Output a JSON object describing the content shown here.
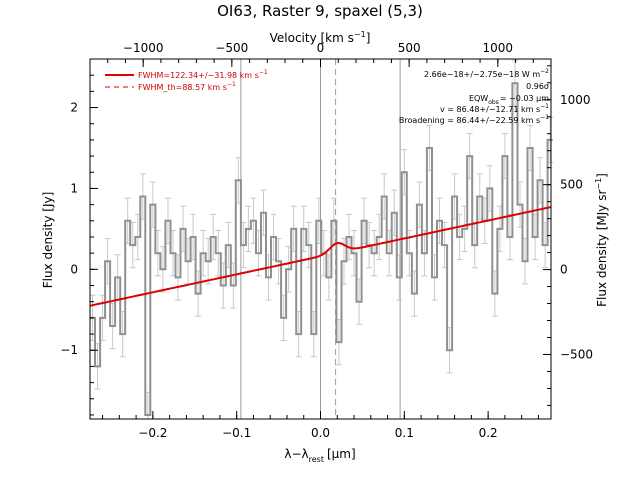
{
  "chart_data": {
    "type": "line",
    "title": "OI63, Raster 9, spaxel (5,3)",
    "xlabel_main": "λ−λ",
    "xlabel_sub": "rest",
    "xlabel_unit": "[μm]",
    "top_label_main": "Velocity [km s",
    "top_label_exp": "−1",
    "top_label_end": "]",
    "ylabel_left": "Flux density [Jy]",
    "ylabel_right_main": "Flux density [MJy sr",
    "ylabel_right_exp": "−1",
    "ylabel_right_end": "]",
    "xlim": [
      -0.275,
      0.275
    ],
    "ylim": [
      -1.85,
      2.6
    ],
    "top_xlim": [
      -1300,
      1300
    ],
    "right_ylim": [
      -880,
      1240
    ],
    "x_ticks": [
      "−0.2",
      "−0.1",
      "0.0",
      "0.1",
      "0.2"
    ],
    "x_tick_values": [
      -0.2,
      -0.1,
      0.0,
      0.1,
      0.2
    ],
    "y_ticks": [
      "−1",
      "0",
      "1",
      "2"
    ],
    "y_tick_values": [
      -1,
      0,
      1,
      2
    ],
    "top_ticks": [
      "−1000",
      "−500",
      "0",
      "500",
      "1000"
    ],
    "top_tick_values": [
      -1000,
      -500,
      0,
      500,
      1000
    ],
    "right_ticks": [
      "−500",
      "0",
      "500",
      "1000"
    ],
    "right_tick_values": [
      -500,
      0,
      500,
      1000
    ],
    "vlines_solid": [
      -0.095,
      0.0,
      0.095
    ],
    "vline_dashed": 0.018,
    "legend": [
      {
        "label": "FWHM=122.34+/−31.98 km s",
        "exp": "−1",
        "style": "solid",
        "color": "#e00000"
      },
      {
        "label": "FWHM_th=88.57 km s",
        "exp": "−1",
        "style": "dashed",
        "color": "#e00000"
      }
    ],
    "annotations": [
      "2.66e−18+/−2.75e−18 W m",
      "0.96σ",
      "EQW",
      "= −0.03 μm",
      "v = 86.48+/−12.71 km s",
      "Broadening = 86.44+/−22.59 km s"
    ],
    "annotation_exps": [
      "−2",
      "obs",
      "−1",
      "−1"
    ],
    "spectrum": {
      "color": "#909090",
      "x": [
        -0.272,
        -0.266,
        -0.26,
        -0.254,
        -0.248,
        -0.242,
        -0.236,
        -0.23,
        -0.224,
        -0.218,
        -0.212,
        -0.206,
        -0.2,
        -0.194,
        -0.188,
        -0.182,
        -0.176,
        -0.17,
        -0.164,
        -0.158,
        -0.152,
        -0.146,
        -0.14,
        -0.134,
        -0.128,
        -0.122,
        -0.116,
        -0.11,
        -0.104,
        -0.098,
        -0.092,
        -0.086,
        -0.08,
        -0.074,
        -0.068,
        -0.062,
        -0.056,
        -0.05,
        -0.044,
        -0.038,
        -0.032,
        -0.026,
        -0.02,
        -0.014,
        -0.008,
        -0.002,
        0.004,
        0.01,
        0.016,
        0.022,
        0.028,
        0.034,
        0.04,
        0.046,
        0.052,
        0.058,
        0.064,
        0.07,
        0.076,
        0.082,
        0.088,
        0.094,
        0.1,
        0.106,
        0.112,
        0.118,
        0.124,
        0.13,
        0.136,
        0.142,
        0.148,
        0.154,
        0.16,
        0.166,
        0.172,
        0.178,
        0.184,
        0.19,
        0.196,
        0.202,
        0.208,
        0.214,
        0.22,
        0.226,
        0.232,
        0.238,
        0.244,
        0.25,
        0.256,
        0.262,
        0.268,
        0.274
      ],
      "y": [
        -0.6,
        -1.2,
        -0.6,
        0.1,
        -0.7,
        -0.1,
        -0.8,
        0.6,
        0.3,
        0.4,
        0.9,
        -1.8,
        0.8,
        0.2,
        0.0,
        0.6,
        0.2,
        -0.1,
        0.5,
        0.1,
        0.4,
        -0.3,
        0.2,
        0.1,
        0.4,
        0.2,
        -0.2,
        0.3,
        -0.2,
        1.1,
        0.3,
        0.5,
        0.6,
        0.2,
        0.7,
        -0.1,
        0.4,
        0.1,
        -0.6,
        0.0,
        0.5,
        -0.8,
        0.5,
        0.3,
        -0.8,
        0.6,
        0.2,
        -0.1,
        0.6,
        -0.9,
        0.1,
        0.4,
        0.2,
        -0.4,
        0.6,
        0.3,
        0.2,
        0.4,
        0.9,
        0.2,
        0.7,
        -0.1,
        1.2,
        0.2,
        -0.3,
        0.8,
        0.2,
        1.5,
        -0.1,
        0.6,
        0.3,
        -1.0,
        0.9,
        0.4,
        0.5,
        1.4,
        0.3,
        0.9,
        0.6,
        1.0,
        -0.3,
        0.5,
        1.4,
        0.4,
        2.3,
        0.8,
        0.1,
        1.5,
        0.4,
        1.1,
        0.3,
        1.6
      ],
      "err": 0.28
    },
    "fit": {
      "color": "#e00000",
      "baseline_start": [
        -0.275,
        -0.45
      ],
      "baseline_end": [
        0.275,
        0.77
      ],
      "peak_x": 0.02,
      "peak_amp": 0.12,
      "peak_sigma": 0.009
    }
  }
}
